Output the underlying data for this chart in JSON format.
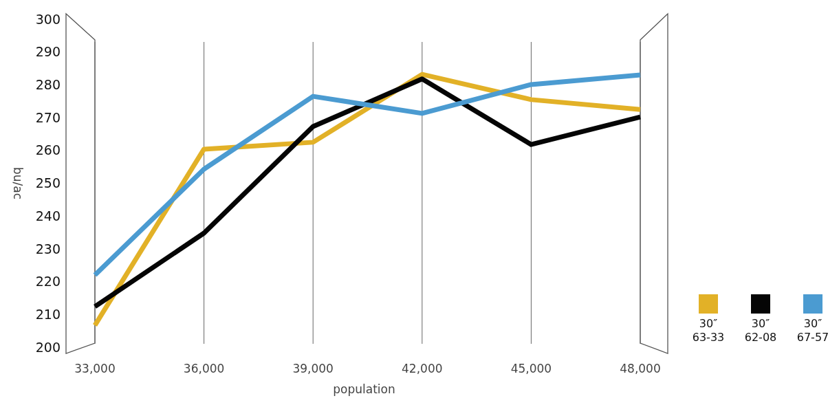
{
  "chart_data": {
    "type": "line",
    "x": [
      33000,
      36000,
      39000,
      42000,
      45000,
      48000
    ],
    "xlim": [
      33000,
      48000
    ],
    "xticks": [
      {
        "value": 33000,
        "label": "33,000"
      },
      {
        "value": 36000,
        "label": "36,000"
      },
      {
        "value": 39000,
        "label": "39,000"
      },
      {
        "value": 42000,
        "label": "42,000"
      },
      {
        "value": 45000,
        "label": "45,000"
      },
      {
        "value": 48000,
        "label": "48,000"
      }
    ],
    "ylim": [
      200,
      300
    ],
    "yticks": [
      200,
      210,
      220,
      230,
      240,
      250,
      260,
      270,
      280,
      290,
      300
    ],
    "xlabel": "population",
    "ylabel": "bu/ac",
    "grid": "x",
    "legend": "bottom right",
    "marker": "none",
    "line_style": "solid",
    "series": [
      {
        "name": "30″ 63-33",
        "color": "#e2b127",
        "values": [
          206.7,
          260.4,
          262.5,
          283.2,
          275.5,
          272.5
        ]
      },
      {
        "name": "30″ 62-08",
        "color": "#050505",
        "values": [
          212.4,
          234.8,
          267.3,
          281.8,
          261.8,
          270.2
        ]
      },
      {
        "name": "30″ 67-57",
        "color": "#4b9bd1",
        "values": [
          222,
          254.3,
          276.5,
          271.3,
          280.1,
          283
        ]
      }
    ]
  }
}
